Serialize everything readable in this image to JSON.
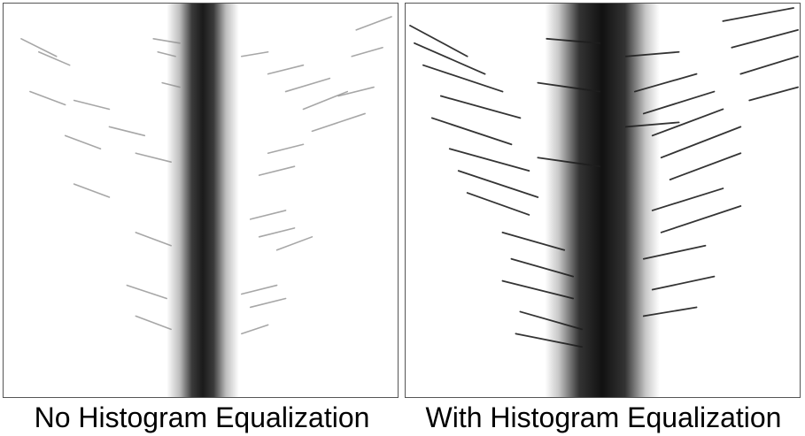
{
  "panels": [
    {
      "caption": "No Histogram Equalization",
      "streak_darkness": "light"
    },
    {
      "caption": "With Histogram Equalization",
      "streak_darkness": "dark"
    }
  ],
  "colors": {
    "band_core": "#1a1a1a",
    "band_edge": "#ffffff",
    "streak_light": "#8a8a8a",
    "streak_dark": "#1e1e1e",
    "border": "#555555"
  }
}
